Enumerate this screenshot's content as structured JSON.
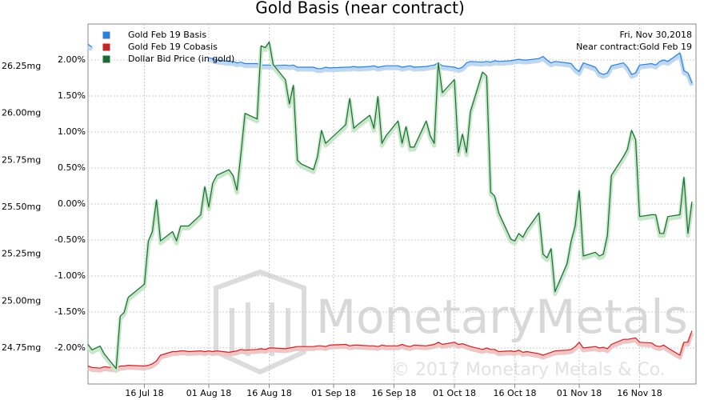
{
  "chart_data": {
    "type": "line",
    "title": "Gold Basis (near contract)",
    "annotations": [
      "Fri, Nov 30,2018",
      "Near contract:Gold Feb 19"
    ],
    "watermark": [
      "MonetaryMetals",
      "© 2017 Monetary Metals & Co."
    ],
    "legend": "top-left",
    "grid": true,
    "x": [
      "2018-07-02",
      "2018-07-03",
      "2018-07-05",
      "2018-07-06",
      "2018-07-09",
      "2018-07-10",
      "2018-07-11",
      "2018-07-12",
      "2018-07-16",
      "2018-07-17",
      "2018-07-18",
      "2018-07-19",
      "2018-07-20",
      "2018-07-23",
      "2018-07-24",
      "2018-07-25",
      "2018-07-26",
      "2018-07-27",
      "2018-07-30",
      "2018-07-31",
      "2018-08-01",
      "2018-08-02",
      "2018-08-03",
      "2018-08-06",
      "2018-08-07",
      "2018-08-08",
      "2018-08-09",
      "2018-08-10",
      "2018-08-13",
      "2018-08-14",
      "2018-08-15",
      "2018-08-16",
      "2018-08-17",
      "2018-08-20",
      "2018-08-21",
      "2018-08-22",
      "2018-08-23",
      "2018-08-24",
      "2018-08-27",
      "2018-08-28",
      "2018-08-29",
      "2018-08-30",
      "2018-08-31",
      "2018-09-04",
      "2018-09-05",
      "2018-09-06",
      "2018-09-07",
      "2018-09-10",
      "2018-09-11",
      "2018-09-12",
      "2018-09-13",
      "2018-09-14",
      "2018-09-17",
      "2018-09-18",
      "2018-09-19",
      "2018-09-20",
      "2018-09-21",
      "2018-09-24",
      "2018-09-25",
      "2018-09-26",
      "2018-09-27",
      "2018-09-28",
      "2018-10-01",
      "2018-10-02",
      "2018-10-03",
      "2018-10-04",
      "2018-10-05",
      "2018-10-08",
      "2018-10-09",
      "2018-10-10",
      "2018-10-11",
      "2018-10-12",
      "2018-10-15",
      "2018-10-16",
      "2018-10-17",
      "2018-10-18",
      "2018-10-19",
      "2018-10-22",
      "2018-10-23",
      "2018-10-24",
      "2018-10-25",
      "2018-10-26",
      "2018-10-29",
      "2018-10-30",
      "2018-10-31",
      "2018-11-01",
      "2018-11-02",
      "2018-11-05",
      "2018-11-06",
      "2018-11-07",
      "2018-11-08",
      "2018-11-09",
      "2018-11-12",
      "2018-11-13",
      "2018-11-14",
      "2018-11-15",
      "2018-11-16",
      "2018-11-19",
      "2018-11-20",
      "2018-11-21",
      "2018-11-22",
      "2018-11-23",
      "2018-11-26",
      "2018-11-27",
      "2018-11-28",
      "2018-11-29"
    ],
    "xlim": [
      "2018-07-02",
      "2018-11-30"
    ],
    "xticks": [
      {
        "value": "2018-07-16",
        "label": "16 Jul 18"
      },
      {
        "value": "2018-08-01",
        "label": "01 Aug 18"
      },
      {
        "value": "2018-08-16",
        "label": "16 Aug 18"
      },
      {
        "value": "2018-09-01",
        "label": "01 Sep 18"
      },
      {
        "value": "2018-09-16",
        "label": "16 Sep 18"
      },
      {
        "value": "2018-10-01",
        "label": "01 Oct 18"
      },
      {
        "value": "2018-10-16",
        "label": "16 Oct 18"
      },
      {
        "value": "2018-11-01",
        "label": "01 Nov 18"
      },
      {
        "value": "2018-11-16",
        "label": "16 Nov 18"
      }
    ],
    "ylim": [
      -2.5,
      2.5
    ],
    "yticks": [
      {
        "value": 2,
        "label": "2.00%"
      },
      {
        "value": 1.5,
        "label": "1.50%"
      },
      {
        "value": 1,
        "label": "1.00%"
      },
      {
        "value": 0.5,
        "label": "0.50%"
      },
      {
        "value": 0,
        "label": "0.00%"
      },
      {
        "value": -0.5,
        "label": "-0.50%"
      },
      {
        "value": -1,
        "label": "-1.00%"
      },
      {
        "value": -1.5,
        "label": "-1.50%"
      },
      {
        "value": -2,
        "label": "-2.00%"
      }
    ],
    "y2lim": [
      24.558,
      26.476
    ],
    "y2ticks": [
      {
        "value": 26.25,
        "label": "26.25mg"
      },
      {
        "value": 26,
        "label": "26.00mg"
      },
      {
        "value": 25.75,
        "label": "25.75mg"
      },
      {
        "value": 25.5,
        "label": "25.50mg"
      },
      {
        "value": 25.25,
        "label": "25.25mg"
      },
      {
        "value": 25,
        "label": "25.00mg"
      },
      {
        "value": 24.75,
        "label": "24.75mg"
      }
    ],
    "series": [
      {
        "name": "Gold Feb 19 Basis",
        "color": "#2f7ed8",
        "values": [
          2.22,
          2.18,
          null,
          null,
          null,
          null,
          null,
          null,
          null,
          null,
          null,
          null,
          null,
          null,
          null,
          null,
          null,
          null,
          null,
          null,
          2.03,
          2.02,
          2.0,
          1.98,
          1.98,
          1.96,
          1.97,
          1.95,
          1.95,
          1.93,
          1.93,
          1.93,
          1.92,
          1.93,
          1.92,
          1.93,
          1.9,
          1.9,
          1.9,
          1.88,
          1.88,
          1.9,
          1.89,
          1.9,
          1.9,
          1.91,
          1.9,
          1.91,
          1.92,
          1.9,
          1.91,
          1.92,
          1.92,
          1.9,
          1.91,
          1.92,
          1.9,
          1.91,
          1.92,
          1.93,
          1.96,
          1.92,
          1.9,
          1.88,
          1.9,
          1.96,
          1.98,
          1.97,
          1.98,
          1.97,
          1.99,
          1.98,
          1.99,
          2.0,
          2.01,
          2.0,
          2.0,
          2.02,
          2.05,
          2.0,
          1.96,
          1.98,
          1.96,
          1.95,
          1.88,
          1.84,
          1.96,
          1.9,
          1.82,
          1.8,
          1.82,
          1.92,
          1.96,
          1.9,
          1.8,
          1.82,
          1.93,
          1.95,
          1.93,
          1.98,
          2.0,
          1.98,
          2.1,
          1.85,
          1.82,
          1.68
        ]
      },
      {
        "name": "Gold Feb 19 Cobasis",
        "color": "#c42525",
        "values": [
          -2.25,
          -2.27,
          -2.28,
          -2.26,
          -2.28,
          -2.25,
          -2.25,
          -2.24,
          -2.25,
          -2.24,
          -2.22,
          -2.18,
          -2.1,
          -2.05,
          -2.05,
          -2.04,
          -2.04,
          -2.05,
          -2.04,
          -2.05,
          -2.04,
          -2.05,
          -2.04,
          -2.06,
          -2.05,
          -2.04,
          -2.02,
          -2.03,
          -2.02,
          -2.01,
          -2.02,
          -2.0,
          -2.0,
          -2.01,
          -2.0,
          -1.99,
          -1.98,
          -1.98,
          -1.98,
          -1.97,
          -1.97,
          -1.98,
          -1.96,
          -1.95,
          -1.97,
          -1.96,
          -1.96,
          -1.97,
          -1.97,
          -1.98,
          -1.96,
          -1.97,
          -1.97,
          -1.95,
          -1.97,
          -1.98,
          -1.96,
          -1.97,
          -1.96,
          -1.95,
          -1.92,
          -1.95,
          -1.92,
          -1.95,
          -1.94,
          -1.96,
          -1.98,
          -2.02,
          -2.0,
          -2.02,
          -2.02,
          -2.05,
          -2.04,
          -2.05,
          -2.03,
          -2.06,
          -2.05,
          -2.08,
          -2.1,
          -2.08,
          -2.06,
          -2.04,
          -2.03,
          -2.02,
          -1.98,
          -1.92,
          -2.0,
          -1.98,
          -2.0,
          -1.99,
          -2.01,
          -1.95,
          -1.88,
          -1.88,
          -1.87,
          -1.86,
          -1.92,
          -1.93,
          -1.97,
          -1.98,
          -1.96,
          -2.0,
          -2.1,
          -1.92,
          -1.92,
          -1.76
        ]
      },
      {
        "name": "Dollar Bid Price (in gold)",
        "color": "#1a6b35",
        "axis": "y2",
        "values": [
          24.77,
          24.74,
          24.76,
          24.72,
          24.64,
          24.92,
          24.94,
          25.02,
          25.09,
          25.32,
          25.37,
          25.54,
          25.32,
          25.37,
          25.32,
          25.4,
          25.4,
          25.4,
          25.46,
          25.61,
          25.5,
          25.63,
          25.67,
          25.7,
          25.67,
          25.59,
          25.79,
          26.0,
          25.97,
          26.36,
          26.35,
          26.38,
          26.26,
          26.18,
          26.05,
          26.15,
          25.75,
          25.73,
          25.7,
          25.77,
          25.91,
          25.84,
          25.86,
          25.94,
          26.08,
          25.92,
          25.94,
          25.99,
          25.92,
          26.09,
          25.84,
          25.88,
          25.96,
          25.84,
          25.93,
          25.82,
          25.82,
          25.96,
          25.88,
          25.84,
          26.27,
          26.11,
          26.18,
          25.79,
          25.89,
          25.79,
          26.01,
          26.22,
          26.2,
          25.58,
          25.56,
          25.47,
          25.33,
          25.32,
          25.36,
          25.34,
          25.38,
          25.47,
          25.25,
          25.23,
          25.28,
          25.05,
          25.2,
          25.32,
          25.4,
          25.59,
          25.24,
          25.26,
          25.24,
          25.25,
          25.35,
          25.67,
          25.77,
          25.81,
          25.91,
          25.86,
          25.45,
          25.46,
          25.46,
          25.36,
          25.36,
          25.45,
          25.46,
          25.66,
          25.36,
          25.53
        ]
      }
    ]
  }
}
